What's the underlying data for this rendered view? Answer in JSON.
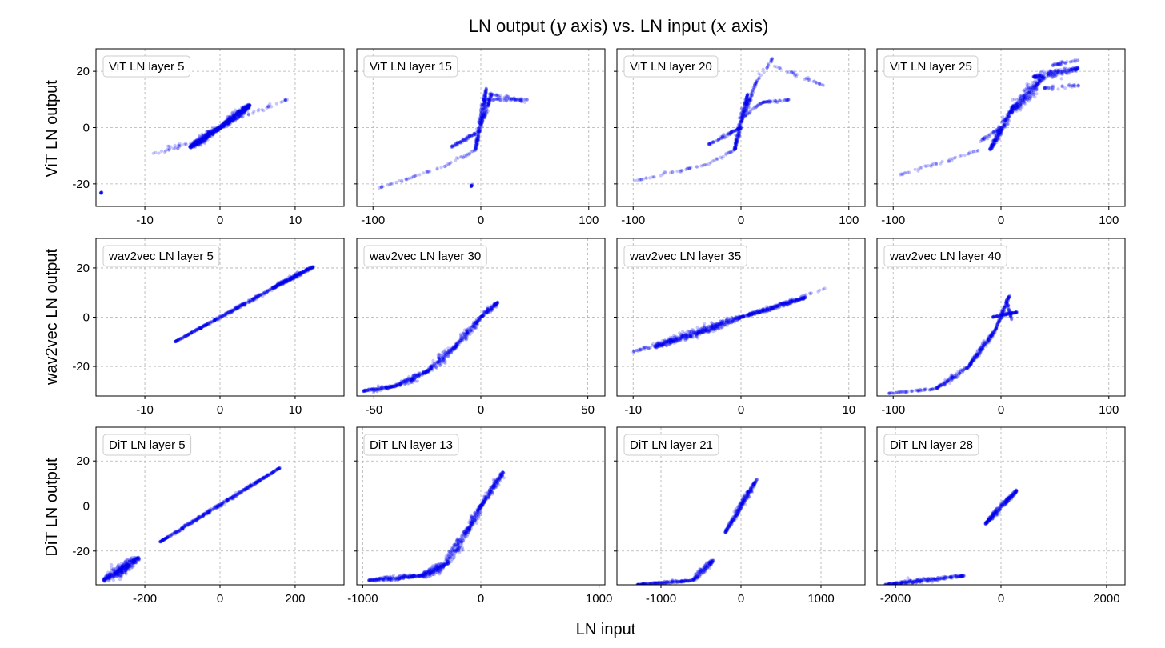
{
  "figure": {
    "title_pre": "LN output (",
    "title_y": "y",
    "title_mid": " axis) vs. LN input (",
    "title_x": "x",
    "title_post": " axis)",
    "xlabel": "LN input",
    "row_labels": [
      "ViT LN output",
      "wav2vec LN output",
      "DiT LN output"
    ]
  },
  "colors": {
    "points": "#0000ee",
    "grid": "#b0b0b0",
    "frame": "#000000"
  },
  "chart_data": [
    {
      "type": "scatter",
      "row": 0,
      "col": 0,
      "title": "ViT LN layer 5",
      "xlim": [
        -16.5,
        16.5
      ],
      "ylim": [
        -28,
        28
      ],
      "xticks": [
        -10,
        0,
        10
      ],
      "yticks": [
        -20,
        0,
        20
      ],
      "segments": [
        {
          "from": [
            0,
            0
          ],
          "to": [
            4,
            8
          ],
          "spread": 2.2,
          "n": 450
        },
        {
          "from": [
            0,
            0
          ],
          "to": [
            -4,
            -7
          ],
          "spread": 2.2,
          "n": 450
        },
        {
          "from": [
            2,
            3
          ],
          "to": [
            9,
            10
          ],
          "spread": 1.5,
          "n": 30
        },
        {
          "from": [
            -3,
            -5
          ],
          "to": [
            -9,
            -9
          ],
          "spread": 1.5,
          "n": 30
        },
        {
          "from": [
            -15.9,
            -23.3
          ],
          "to": [
            -15.7,
            -23.0
          ],
          "spread": 0.4,
          "n": 12
        }
      ]
    },
    {
      "type": "scatter",
      "row": 0,
      "col": 1,
      "title": "ViT LN layer 15",
      "xlim": [
        -115,
        115
      ],
      "ylim": [
        -28,
        28
      ],
      "xticks": [
        -100,
        0,
        100
      ],
      "yticks": [
        -20,
        0,
        20
      ],
      "segments": [
        {
          "from": [
            -5,
            -8
          ],
          "to": [
            5,
            14
          ],
          "spread": 1.5,
          "n": 220
        },
        {
          "from": [
            0,
            -1
          ],
          "to": [
            -28,
            -7
          ],
          "spread": 1.0,
          "n": 90
        },
        {
          "from": [
            0,
            1
          ],
          "to": [
            10,
            12
          ],
          "spread": 1.2,
          "n": 90
        },
        {
          "from": [
            2,
            10
          ],
          "to": [
            43,
            10
          ],
          "spread": 1.0,
          "n": 60
        },
        {
          "from": [
            8,
            12
          ],
          "to": [
            42,
            9
          ],
          "spread": 1.0,
          "n": 40
        },
        {
          "from": [
            -5,
            -8
          ],
          "to": [
            -35,
            -14
          ],
          "spread": 1.2,
          "n": 25
        },
        {
          "from": [
            -35,
            -14
          ],
          "to": [
            -95,
            -21.5
          ],
          "spread": 0.6,
          "n": 35
        },
        {
          "from": [
            -8,
            -20
          ],
          "to": [
            -9,
            -21
          ],
          "spread": 0.4,
          "n": 15
        }
      ]
    },
    {
      "type": "scatter",
      "row": 0,
      "col": 2,
      "title": "ViT LN layer 20",
      "xlim": [
        -115,
        115
      ],
      "ylim": [
        -28,
        28
      ],
      "xticks": [
        -100,
        0,
        100
      ],
      "yticks": [
        -20,
        0,
        20
      ],
      "segments": [
        {
          "from": [
            -6,
            -8
          ],
          "to": [
            6,
            12
          ],
          "spread": 1.5,
          "n": 220
        },
        {
          "from": [
            0,
            0
          ],
          "to": [
            -30,
            -6
          ],
          "spread": 1.0,
          "n": 90
        },
        {
          "from": [
            0,
            2
          ],
          "to": [
            14,
            16
          ],
          "spread": 1.2,
          "n": 80
        },
        {
          "from": [
            3,
            4
          ],
          "to": [
            20,
            9
          ],
          "spread": 1.0,
          "n": 30
        },
        {
          "from": [
            20,
            9
          ],
          "to": [
            45,
            10
          ],
          "spread": 0.8,
          "n": 45
        },
        {
          "from": [
            10,
            14
          ],
          "to": [
            30,
            25
          ],
          "spread": 1.0,
          "n": 30
        },
        {
          "from": [
            30,
            22
          ],
          "to": [
            77,
            15
          ],
          "spread": 1.0,
          "n": 35
        },
        {
          "from": [
            -6,
            -8
          ],
          "to": [
            -30,
            -13
          ],
          "spread": 1.0,
          "n": 20
        },
        {
          "from": [
            -30,
            -13
          ],
          "to": [
            -100,
            -19
          ],
          "spread": 0.8,
          "n": 40
        }
      ]
    },
    {
      "type": "scatter",
      "row": 0,
      "col": 3,
      "title": "ViT LN layer 25",
      "xlim": [
        -115,
        115
      ],
      "ylim": [
        -28,
        28
      ],
      "xticks": [
        -100,
        0,
        100
      ],
      "yticks": [
        -20,
        0,
        20
      ],
      "segments": [
        {
          "from": [
            -10,
            -8
          ],
          "to": [
            12,
            8
          ],
          "spread": 1.8,
          "n": 250
        },
        {
          "from": [
            8,
            5
          ],
          "to": [
            40,
            18
          ],
          "spread": 3.5,
          "n": 280
        },
        {
          "from": [
            30,
            18
          ],
          "to": [
            72,
            21
          ],
          "spread": 2.5,
          "n": 200
        },
        {
          "from": [
            45,
            22
          ],
          "to": [
            72,
            24
          ],
          "spread": 1.2,
          "n": 40
        },
        {
          "from": [
            40,
            14
          ],
          "to": [
            72,
            15
          ],
          "spread": 1.5,
          "n": 40
        },
        {
          "from": [
            0,
            0
          ],
          "to": [
            -20,
            -5
          ],
          "spread": 1.2,
          "n": 40
        },
        {
          "from": [
            -20,
            -8
          ],
          "to": [
            -95,
            -17
          ],
          "spread": 1.2,
          "n": 45
        }
      ]
    },
    {
      "type": "scatter",
      "row": 1,
      "col": 0,
      "title": "wav2vec LN layer 5",
      "xlim": [
        -16.5,
        16.5
      ],
      "ylim": [
        -32,
        32
      ],
      "xticks": [
        -10,
        0,
        10
      ],
      "yticks": [
        -20,
        0,
        20
      ],
      "segments": [
        {
          "from": [
            -6,
            -10
          ],
          "to": [
            12,
            20
          ],
          "spread": 0.8,
          "n": 500
        },
        {
          "from": [
            7,
            12
          ],
          "to": [
            12.5,
            20.5
          ],
          "spread": 1.4,
          "n": 200
        }
      ]
    },
    {
      "type": "scatter",
      "row": 1,
      "col": 1,
      "title": "wav2vec LN layer 30",
      "xlim": [
        -58,
        58
      ],
      "ylim": [
        -32,
        32
      ],
      "xticks": [
        -50,
        0,
        50
      ],
      "yticks": [
        -20,
        0,
        20
      ],
      "segments": [
        {
          "from": [
            -55,
            -30
          ],
          "to": [
            -40,
            -28
          ],
          "spread": 1.3,
          "n": 130
        },
        {
          "from": [
            -40,
            -28
          ],
          "to": [
            -25,
            -22
          ],
          "spread": 2.2,
          "n": 170
        },
        {
          "from": [
            -25,
            -22
          ],
          "to": [
            -12,
            -12
          ],
          "spread": 2.8,
          "n": 170
        },
        {
          "from": [
            -12,
            -12
          ],
          "to": [
            0,
            0
          ],
          "spread": 2.0,
          "n": 160
        },
        {
          "from": [
            0,
            0
          ],
          "to": [
            8,
            6
          ],
          "spread": 1.5,
          "n": 120
        }
      ]
    },
    {
      "type": "scatter",
      "row": 1,
      "col": 2,
      "title": "wav2vec LN layer 35",
      "xlim": [
        -11.5,
        11.5
      ],
      "ylim": [
        -32,
        32
      ],
      "xticks": [
        -10,
        0,
        10
      ],
      "yticks": [
        -20,
        0,
        20
      ],
      "segments": [
        {
          "from": [
            0,
            0
          ],
          "to": [
            -8,
            -12
          ],
          "spread": 2.8,
          "n": 450
        },
        {
          "from": [
            -2,
            -4
          ],
          "to": [
            -10,
            -14
          ],
          "spread": 1.8,
          "n": 120
        },
        {
          "from": [
            0,
            0
          ],
          "to": [
            6,
            8
          ],
          "spread": 1.3,
          "n": 350
        },
        {
          "from": [
            4,
            6
          ],
          "to": [
            8,
            12
          ],
          "spread": 0.8,
          "n": 15
        }
      ]
    },
    {
      "type": "scatter",
      "row": 1,
      "col": 3,
      "title": "wav2vec LN layer 40",
      "xlim": [
        -115,
        115
      ],
      "ylim": [
        -32,
        32
      ],
      "xticks": [
        -100,
        0,
        100
      ],
      "yticks": [
        -20,
        0,
        20
      ],
      "segments": [
        {
          "from": [
            -105,
            -31
          ],
          "to": [
            -60,
            -29
          ],
          "spread": 0.6,
          "n": 60
        },
        {
          "from": [
            -60,
            -29
          ],
          "to": [
            -30,
            -20
          ],
          "spread": 1.5,
          "n": 120
        },
        {
          "from": [
            -30,
            -20
          ],
          "to": [
            -5,
            -5
          ],
          "spread": 1.5,
          "n": 200
        },
        {
          "from": [
            -5,
            -5
          ],
          "to": [
            8,
            9
          ],
          "spread": 1.0,
          "n": 120
        },
        {
          "from": [
            -8,
            0
          ],
          "to": [
            15,
            2
          ],
          "spread": 0.8,
          "n": 100
        },
        {
          "from": [
            5,
            7
          ],
          "to": [
            10,
            -1
          ],
          "spread": 0.6,
          "n": 40
        }
      ]
    },
    {
      "type": "scatter",
      "row": 2,
      "col": 0,
      "title": "DiT LN layer 5",
      "xlim": [
        -330,
        330
      ],
      "ylim": [
        -35,
        35
      ],
      "xticks": [
        -200,
        0,
        200
      ],
      "yticks": [
        -20,
        0,
        20
      ],
      "segments": [
        {
          "from": [
            -160,
            -16
          ],
          "to": [
            160,
            17
          ],
          "spread": 0.9,
          "n": 500
        },
        {
          "from": [
            -310,
            -33
          ],
          "to": [
            -215,
            -23
          ],
          "spread": 3.5,
          "n": 350
        },
        {
          "from": [
            -280,
            -30
          ],
          "to": [
            -240,
            -26
          ],
          "spread": 2.0,
          "n": 80
        }
      ]
    },
    {
      "type": "scatter",
      "row": 2,
      "col": 1,
      "title": "DiT LN layer 13",
      "xlim": [
        -1050,
        1050
      ],
      "ylim": [
        -35,
        35
      ],
      "xticks": [
        -1000,
        0,
        1000
      ],
      "yticks": [
        -20,
        0,
        20
      ],
      "segments": [
        {
          "from": [
            -950,
            -33
          ],
          "to": [
            -500,
            -31
          ],
          "spread": 1.4,
          "n": 220
        },
        {
          "from": [
            -500,
            -31
          ],
          "to": [
            -300,
            -26
          ],
          "spread": 2.8,
          "n": 200
        },
        {
          "from": [
            -300,
            -26
          ],
          "to": [
            -100,
            -10
          ],
          "spread": 3.0,
          "n": 200
        },
        {
          "from": [
            -100,
            -10
          ],
          "to": [
            0,
            0
          ],
          "spread": 2.2,
          "n": 120
        },
        {
          "from": [
            0,
            0
          ],
          "to": [
            190,
            15
          ],
          "spread": 2.0,
          "n": 200
        }
      ]
    },
    {
      "type": "scatter",
      "row": 2,
      "col": 2,
      "title": "DiT LN layer 21",
      "xlim": [
        -1550,
        1550
      ],
      "ylim": [
        -35,
        35
      ],
      "xticks": [
        -1000,
        0,
        1000
      ],
      "yticks": [
        -20,
        0,
        20
      ],
      "segments": [
        {
          "from": [
            -1300,
            -35
          ],
          "to": [
            -600,
            -33
          ],
          "spread": 0.8,
          "n": 200
        },
        {
          "from": [
            -600,
            -33
          ],
          "to": [
            -350,
            -24
          ],
          "spread": 2.0,
          "n": 150
        },
        {
          "from": [
            -200,
            -12
          ],
          "to": [
            200,
            12
          ],
          "spread": 1.5,
          "n": 300
        }
      ]
    },
    {
      "type": "scatter",
      "row": 2,
      "col": 3,
      "title": "DiT LN layer 28",
      "xlim": [
        -2350,
        2350
      ],
      "ylim": [
        -35,
        35
      ],
      "xticks": [
        -2000,
        0,
        2000
      ],
      "yticks": [
        -20,
        0,
        20
      ],
      "segments": [
        {
          "from": [
            -2200,
            -35
          ],
          "to": [
            -700,
            -31
          ],
          "spread": 1.3,
          "n": 280
        },
        {
          "from": [
            -300,
            -8
          ],
          "to": [
            300,
            7
          ],
          "spread": 1.6,
          "n": 300
        }
      ]
    }
  ]
}
